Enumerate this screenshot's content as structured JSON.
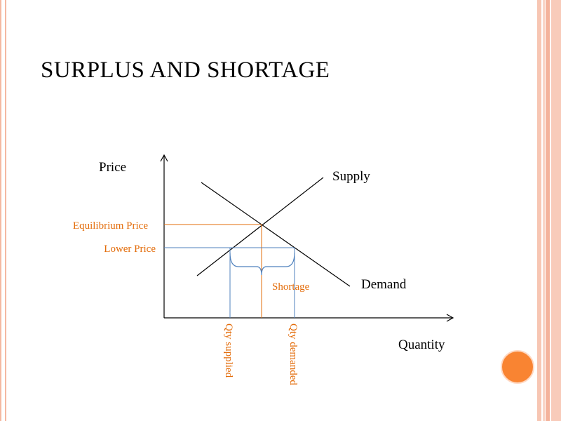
{
  "slide": {
    "title": "SURPLUS AND SHORTAGE"
  },
  "diagram": {
    "y_axis_label": "Price",
    "x_axis_label": "Quantity",
    "supply_label": "Supply",
    "demand_label": "Demand",
    "equilibrium_price_label": "Equilibrium Price",
    "lower_price_label": "Lower Price",
    "shortage_label": "Shortage",
    "qty_supplied_label": "Qty supplied",
    "qty_demanded_label": "Qty demanded"
  },
  "colors": {
    "orange": "#e36c0a",
    "blue": "#4f81bd",
    "accent_circle": "#f98432",
    "band": "#f4b9a2"
  }
}
